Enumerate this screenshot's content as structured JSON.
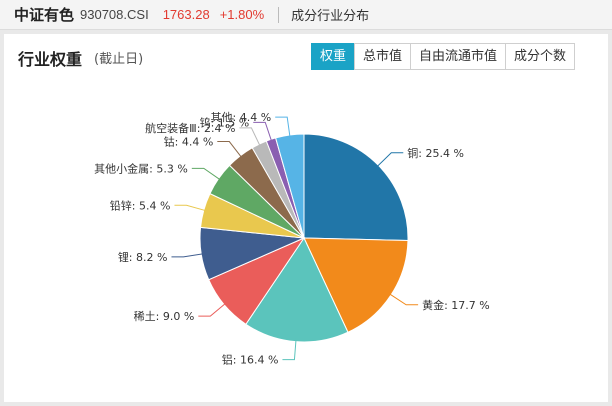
{
  "header": {
    "index_name": "中证有色",
    "index_code": "930708.CSI",
    "price": "1763.28",
    "change": "+1.80%",
    "section": "成分行业分布"
  },
  "panel": {
    "title": "行业权重",
    "subtitle": "(截止日)",
    "tabs": [
      {
        "label": "权重",
        "active": true
      },
      {
        "label": "总市值",
        "active": false
      },
      {
        "label": "自由流通市值",
        "active": false
      },
      {
        "label": "成分个数",
        "active": false
      }
    ]
  },
  "chart_data": {
    "type": "pie",
    "title": "",
    "slices": [
      {
        "label": "铜",
        "value": 25.4,
        "text": "铜: 25.4 %",
        "color": "#2176a8"
      },
      {
        "label": "黄金",
        "value": 17.7,
        "text": "黄金: 17.7 %",
        "color": "#f28a1b"
      },
      {
        "label": "铝",
        "value": 16.4,
        "text": "铝: 16.4 %",
        "color": "#5bc4bc"
      },
      {
        "label": "稀土",
        "value": 9.0,
        "text": "稀土: 9.0 %",
        "color": "#ea5d5a"
      },
      {
        "label": "锂",
        "value": 8.2,
        "text": "锂: 8.2 %",
        "color": "#3f5d8f"
      },
      {
        "label": "铅锌",
        "value": 5.4,
        "text": "铅锌: 5.4 %",
        "color": "#e9c84e"
      },
      {
        "label": "其他小金属",
        "value": 5.3,
        "text": "其他小金属: 5.3 %",
        "color": "#5fa864"
      },
      {
        "label": "钴",
        "value": 4.4,
        "text": "钴: 4.4 %",
        "color": "#8c6a4c"
      },
      {
        "label": "航空装备Ⅲ",
        "value": 2.4,
        "text": "航空装备Ⅲ: 2.4 %",
        "color": "#b9b9b9"
      },
      {
        "label": "钨",
        "value": 1.5,
        "text": "钨: 1.5 %",
        "color": "#8a5fb1"
      },
      {
        "label": "其他",
        "value": 4.4,
        "text": "其他: 4.4 %",
        "color": "#56b4e6"
      }
    ]
  }
}
